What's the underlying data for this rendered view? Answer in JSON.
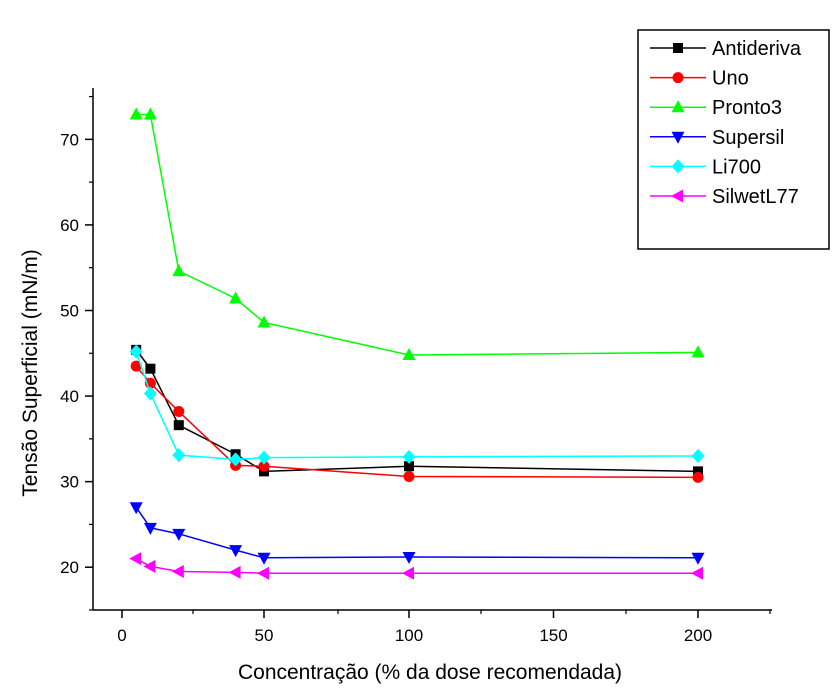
{
  "chart_data": {
    "type": "line",
    "xlabel": "Concentração (% da dose recomendada)",
    "ylabel": "Tensão Superficial (mN/m)",
    "xlim": [
      -10,
      225
    ],
    "ylim": [
      15,
      76
    ],
    "x_ticks": [
      0,
      50,
      100,
      150,
      200
    ],
    "x_minor_ticks": [
      25,
      75,
      125,
      175,
      225
    ],
    "y_ticks": [
      20,
      30,
      40,
      50,
      60,
      70
    ],
    "y_minor_ticks": [
      15,
      25,
      35,
      45,
      55,
      65,
      75
    ],
    "x_break": {
      "after": 50,
      "before": 100
    },
    "legend_position": "top-right",
    "grid": false,
    "series": [
      {
        "name": "Antideriva",
        "color": "#000000",
        "marker": "square",
        "x": [
          5,
          10,
          20,
          40,
          50,
          100,
          200
        ],
        "y": [
          45.4,
          43.2,
          36.6,
          33.2,
          31.2,
          31.8,
          31.2
        ]
      },
      {
        "name": "Uno",
        "color": "#ff0000",
        "marker": "circle",
        "x": [
          5,
          10,
          20,
          40,
          50,
          100,
          200
        ],
        "y": [
          43.5,
          41.5,
          38.2,
          31.9,
          31.8,
          30.6,
          30.5
        ]
      },
      {
        "name": "Pronto3",
        "color": "#00ff00",
        "marker": "triangle-up",
        "x": [
          5,
          10,
          20,
          40,
          50,
          100,
          200
        ],
        "y": [
          72.9,
          72.9,
          54.6,
          51.4,
          48.6,
          44.8,
          45.1
        ]
      },
      {
        "name": "Supersil",
        "color": "#0000ff",
        "marker": "triangle-down",
        "x": [
          5,
          10,
          20,
          40,
          50,
          100,
          200
        ],
        "y": [
          27.0,
          24.6,
          23.9,
          22.0,
          21.1,
          21.2,
          21.1
        ]
      },
      {
        "name": "Li700",
        "color": "#00ffff",
        "marker": "diamond",
        "x": [
          5,
          10,
          20,
          40,
          50,
          100,
          200
        ],
        "y": [
          45.2,
          40.3,
          33.1,
          32.6,
          32.8,
          32.9,
          33.0
        ]
      },
      {
        "name": "SilwetL77",
        "color": "#ff00ff",
        "marker": "triangle-left",
        "x": [
          5,
          10,
          20,
          40,
          50,
          100,
          200
        ],
        "y": [
          21.0,
          20.1,
          19.5,
          19.4,
          19.3,
          19.3,
          19.3
        ]
      }
    ]
  }
}
